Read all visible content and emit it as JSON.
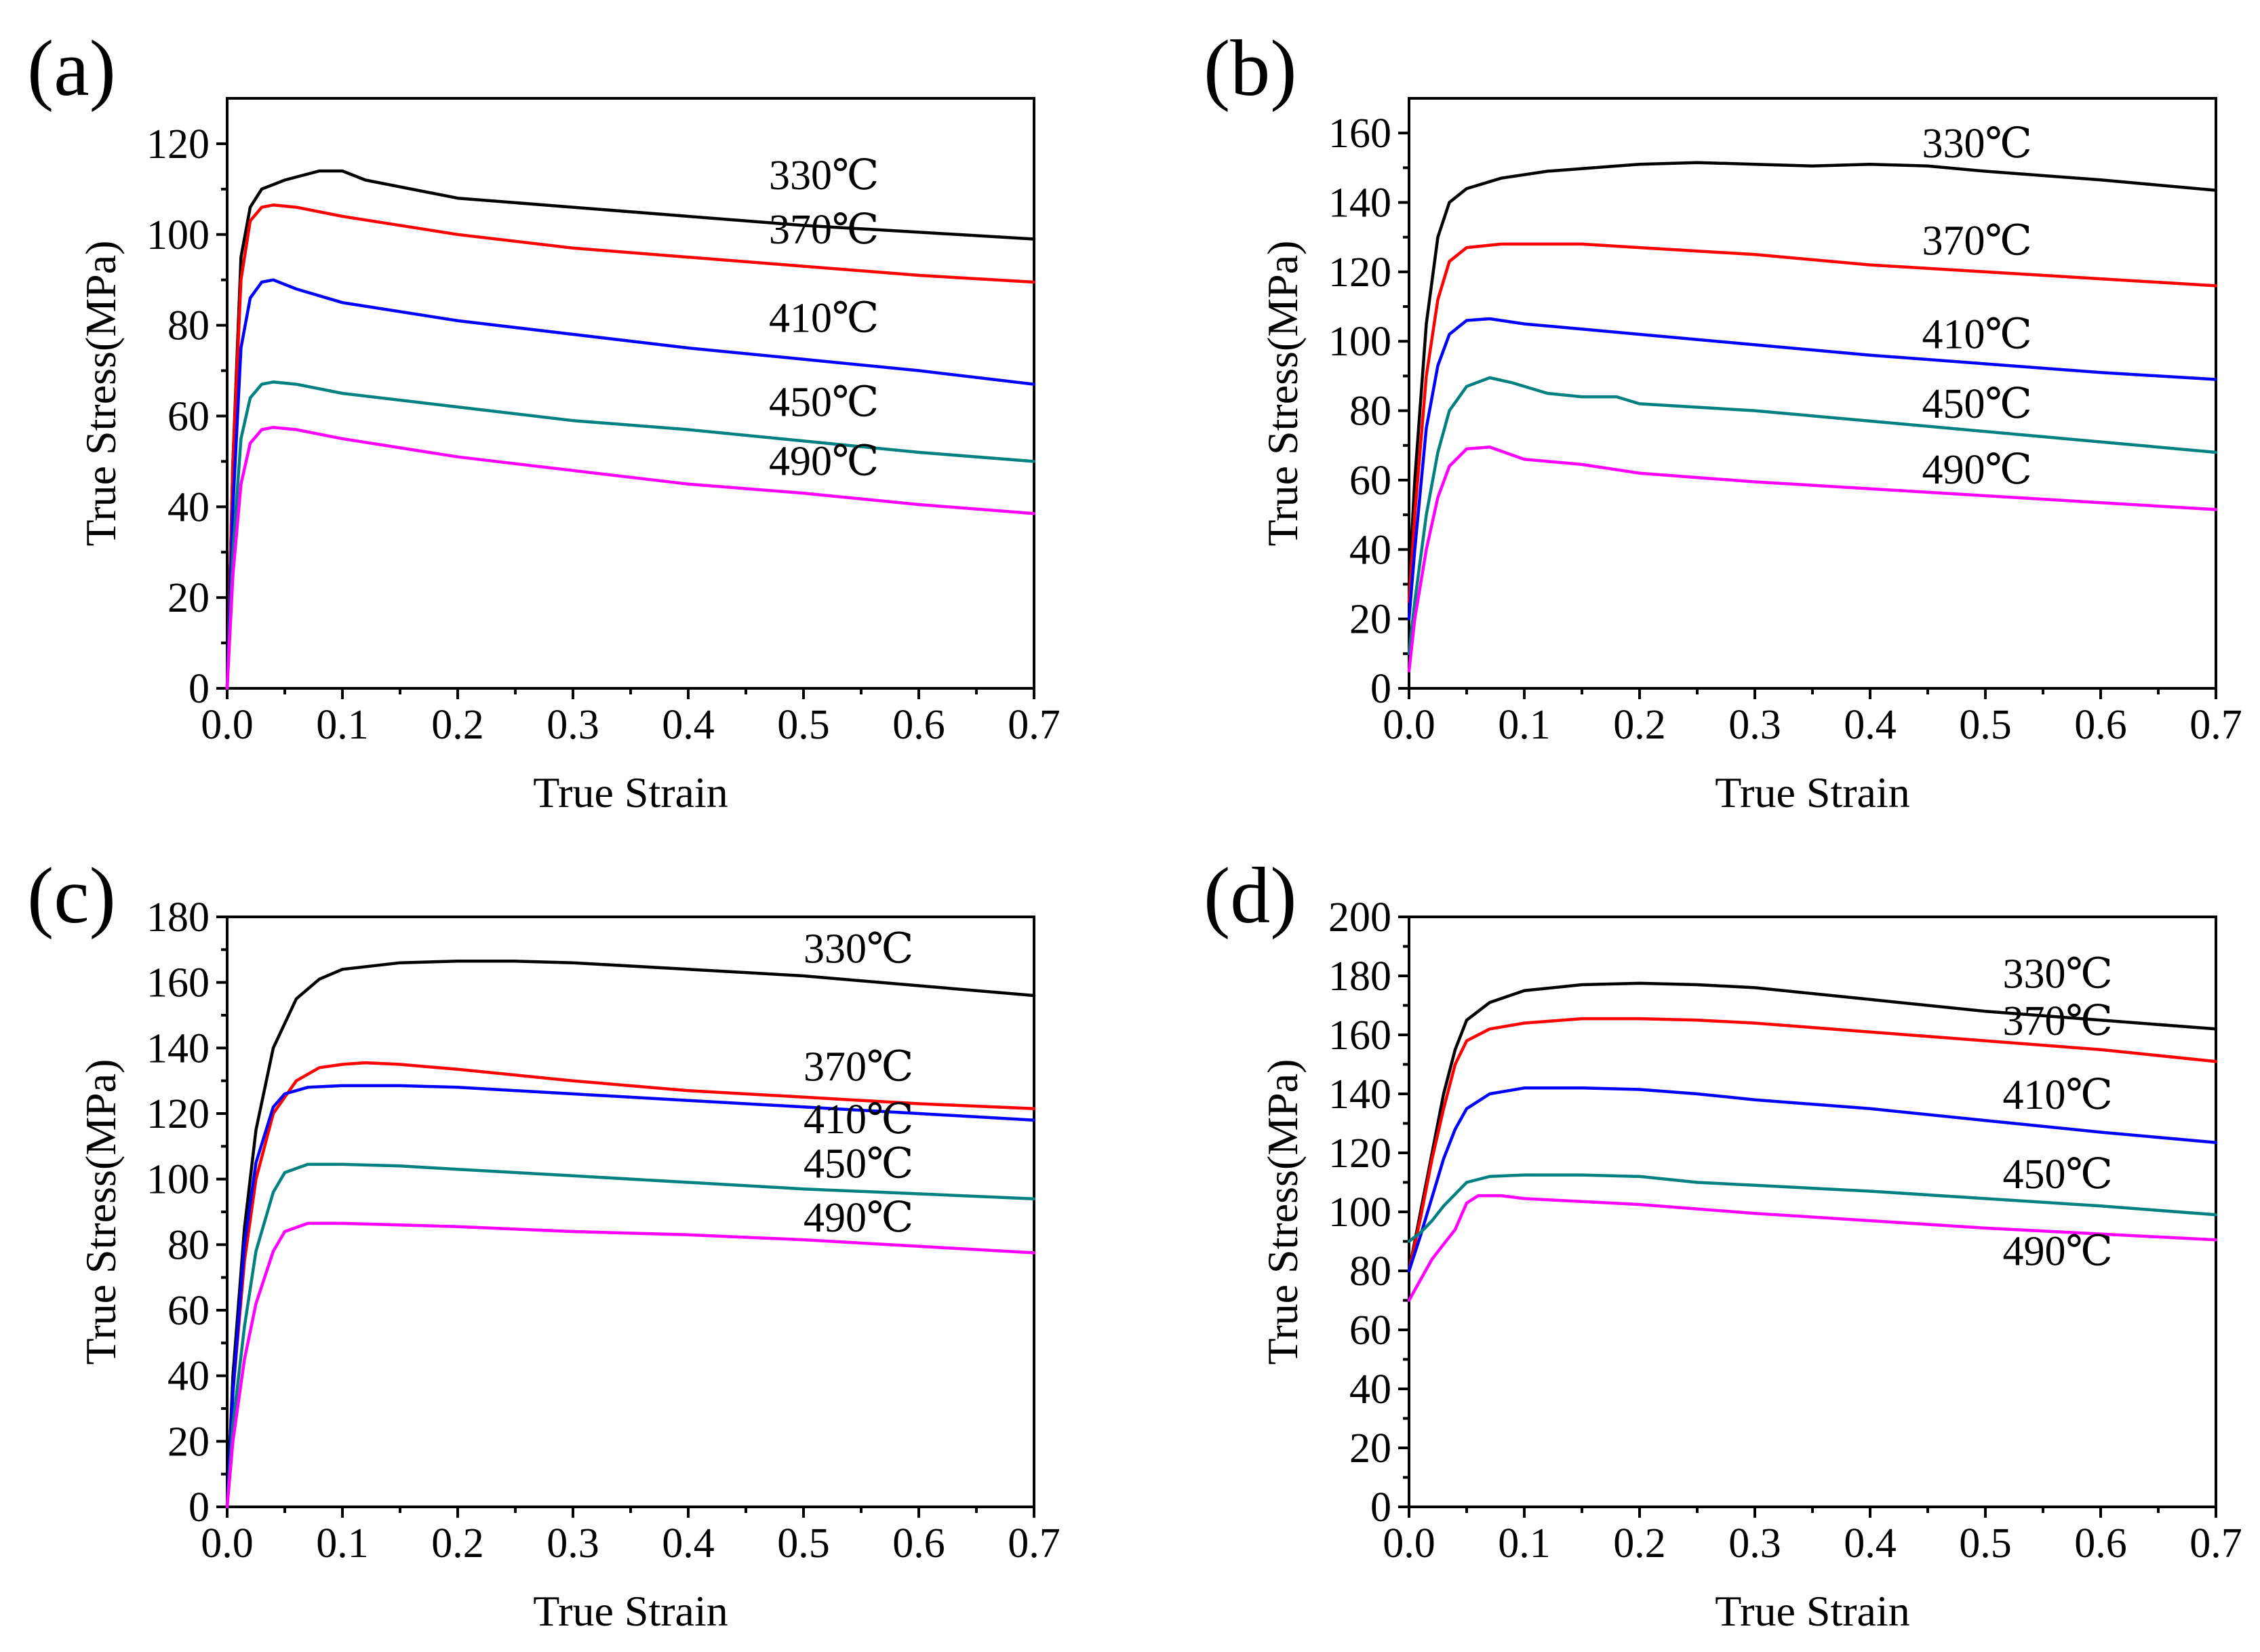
{
  "colors": {
    "330": "#000000",
    "370": "#ff0000",
    "410": "#0000ff",
    "450": "#008080",
    "490": "#ff00ff"
  },
  "chart_data": [
    {
      "panel": "(a)",
      "type": "line",
      "xlabel": "True Strain",
      "ylabel": "True Stress(MPa)",
      "xlim": [
        0,
        0.7
      ],
      "ylim": [
        0,
        130
      ],
      "xticks": [
        "0.0",
        "0.1",
        "0.2",
        "0.3",
        "0.4",
        "0.5",
        "0.6",
        "0.7"
      ],
      "yticks": [
        "0",
        "20",
        "40",
        "60",
        "80",
        "100",
        "120"
      ],
      "series": [
        {
          "name": "330℃",
          "color": "#000000",
          "label_at": [
            0.47,
            110
          ],
          "x": [
            0,
            0.005,
            0.012,
            0.02,
            0.03,
            0.05,
            0.08,
            0.1,
            0.12,
            0.2,
            0.3,
            0.4,
            0.5,
            0.6,
            0.7
          ],
          "y": [
            0,
            50,
            95,
            106,
            110,
            112,
            114,
            114,
            112,
            108,
            106,
            104,
            102,
            100.5,
            99
          ]
        },
        {
          "name": "370℃",
          "color": "#ff0000",
          "label_at": [
            0.47,
            98
          ],
          "x": [
            0,
            0.005,
            0.012,
            0.02,
            0.03,
            0.04,
            0.06,
            0.1,
            0.2,
            0.3,
            0.4,
            0.5,
            0.6,
            0.7
          ],
          "y": [
            0,
            50,
            90,
            103,
            106,
            106.5,
            106,
            104,
            100,
            97,
            95,
            93,
            91,
            89.5
          ]
        },
        {
          "name": "410℃",
          "color": "#0000ff",
          "label_at": [
            0.47,
            78.5
          ],
          "x": [
            0,
            0.005,
            0.012,
            0.02,
            0.03,
            0.04,
            0.06,
            0.1,
            0.2,
            0.3,
            0.4,
            0.5,
            0.6,
            0.7
          ],
          "y": [
            0,
            40,
            75,
            86,
            89.5,
            90,
            88,
            85,
            81,
            78,
            75,
            72.5,
            70,
            67
          ]
        },
        {
          "name": "450℃",
          "color": "#008080",
          "label_at": [
            0.47,
            60
          ],
          "x": [
            0,
            0.005,
            0.012,
            0.02,
            0.03,
            0.04,
            0.06,
            0.1,
            0.2,
            0.3,
            0.4,
            0.5,
            0.6,
            0.7
          ],
          "y": [
            0,
            30,
            55,
            64,
            67,
            67.5,
            67,
            65,
            62,
            59,
            57,
            54.5,
            52,
            50
          ]
        },
        {
          "name": "490℃",
          "color": "#ff00ff",
          "label_at": [
            0.47,
            47
          ],
          "x": [
            0,
            0.005,
            0.012,
            0.02,
            0.03,
            0.04,
            0.06,
            0.1,
            0.2,
            0.3,
            0.4,
            0.5,
            0.6,
            0.7
          ],
          "y": [
            0,
            25,
            45,
            54,
            57,
            57.5,
            57,
            55,
            51,
            48,
            45,
            43,
            40.5,
            38.5
          ]
        }
      ]
    },
    {
      "panel": "(b)",
      "type": "line",
      "xlabel": "True Strain",
      "ylabel": "True Stress(MPa)",
      "xlim": [
        0,
        0.7
      ],
      "ylim": [
        0,
        170
      ],
      "xticks": [
        "0.0",
        "0.1",
        "0.2",
        "0.3",
        "0.4",
        "0.5",
        "0.6",
        "0.7"
      ],
      "yticks": [
        "0",
        "20",
        "40",
        "60",
        "80",
        "100",
        "120",
        "140",
        "160"
      ],
      "series": [
        {
          "name": "330℃",
          "color": "#000000",
          "label_at": [
            0.445,
            153
          ],
          "x": [
            0,
            0.005,
            0.015,
            0.025,
            0.035,
            0.05,
            0.08,
            0.12,
            0.2,
            0.25,
            0.3,
            0.35,
            0.4,
            0.45,
            0.5,
            0.6,
            0.7
          ],
          "y": [
            30,
            60,
            105,
            130,
            140,
            144,
            147,
            149,
            151,
            151.5,
            151,
            150.5,
            151,
            150.5,
            149,
            146.5,
            143.5
          ]
        },
        {
          "name": "370℃",
          "color": "#ff0000",
          "label_at": [
            0.445,
            125
          ],
          "x": [
            0,
            0.005,
            0.015,
            0.025,
            0.035,
            0.05,
            0.08,
            0.15,
            0.2,
            0.3,
            0.4,
            0.5,
            0.6,
            0.7
          ],
          "y": [
            25,
            50,
            90,
            112,
            123,
            127,
            128,
            128,
            127,
            125,
            122,
            120,
            118,
            116
          ]
        },
        {
          "name": "410℃",
          "color": "#0000ff",
          "label_at": [
            0.445,
            98
          ],
          "x": [
            0,
            0.005,
            0.015,
            0.025,
            0.035,
            0.05,
            0.07,
            0.1,
            0.15,
            0.2,
            0.3,
            0.4,
            0.5,
            0.6,
            0.7
          ],
          "y": [
            20,
            40,
            75,
            93,
            102,
            106,
            106.5,
            105,
            103.5,
            102,
            99,
            96,
            93.5,
            91,
            89
          ]
        },
        {
          "name": "450℃",
          "color": "#008080",
          "label_at": [
            0.445,
            78
          ],
          "x": [
            0,
            0.005,
            0.015,
            0.025,
            0.035,
            0.05,
            0.07,
            0.09,
            0.12,
            0.15,
            0.18,
            0.2,
            0.25,
            0.3,
            0.4,
            0.5,
            0.6,
            0.7
          ],
          "y": [
            10,
            25,
            50,
            68,
            80,
            87,
            89.5,
            88,
            85,
            84,
            84,
            82,
            81,
            80,
            77,
            74,
            71,
            68
          ]
        },
        {
          "name": "490℃",
          "color": "#ff00ff",
          "label_at": [
            0.445,
            59
          ],
          "x": [
            0,
            0.005,
            0.015,
            0.025,
            0.035,
            0.05,
            0.07,
            0.1,
            0.15,
            0.2,
            0.3,
            0.4,
            0.5,
            0.6,
            0.7
          ],
          "y": [
            5,
            20,
            40,
            55,
            64,
            69,
            69.5,
            66,
            64.5,
            62,
            59.5,
            57.5,
            55.5,
            53.5,
            51.5
          ]
        }
      ]
    },
    {
      "panel": "(c)",
      "type": "line",
      "xlabel": "True Strain",
      "ylabel": "True Stress(MPa)",
      "xlim": [
        0,
        0.7
      ],
      "ylim": [
        0,
        180
      ],
      "xticks": [
        "0.0",
        "0.1",
        "0.2",
        "0.3",
        "0.4",
        "0.5",
        "0.6",
        "0.7"
      ],
      "yticks": [
        "0",
        "20",
        "40",
        "60",
        "80",
        "100",
        "120",
        "140",
        "160",
        "180"
      ],
      "series": [
        {
          "name": "330℃",
          "color": "#000000",
          "label_at": [
            0.5,
            166
          ],
          "x": [
            0,
            0.005,
            0.015,
            0.025,
            0.04,
            0.06,
            0.08,
            0.1,
            0.15,
            0.2,
            0.25,
            0.3,
            0.4,
            0.5,
            0.6,
            0.7
          ],
          "y": [
            0,
            40,
            85,
            115,
            140,
            155,
            161,
            164,
            166,
            166.5,
            166.5,
            166,
            164,
            162,
            159,
            156
          ]
        },
        {
          "name": "370℃",
          "color": "#ff0000",
          "label_at": [
            0.5,
            130
          ],
          "x": [
            0,
            0.005,
            0.015,
            0.025,
            0.04,
            0.06,
            0.08,
            0.1,
            0.12,
            0.15,
            0.2,
            0.3,
            0.4,
            0.5,
            0.6,
            0.7
          ],
          "y": [
            0,
            35,
            75,
            100,
            120,
            130,
            134,
            135,
            135.5,
            135,
            133.5,
            130,
            127,
            125,
            123,
            121.5
          ]
        },
        {
          "name": "410℃",
          "color": "#0000ff",
          "label_at": [
            0.5,
            114
          ],
          "x": [
            0,
            0.005,
            0.015,
            0.025,
            0.04,
            0.05,
            0.07,
            0.1,
            0.15,
            0.2,
            0.3,
            0.4,
            0.5,
            0.6,
            0.7
          ],
          "y": [
            0,
            35,
            80,
            105,
            122,
            126,
            128,
            128.5,
            128.5,
            128,
            126,
            124,
            122,
            120,
            118
          ]
        },
        {
          "name": "450℃",
          "color": "#008080",
          "label_at": [
            0.5,
            100.5
          ],
          "x": [
            0,
            0.005,
            0.015,
            0.025,
            0.04,
            0.05,
            0.07,
            0.1,
            0.15,
            0.2,
            0.3,
            0.4,
            0.5,
            0.6,
            0.7
          ],
          "y": [
            0,
            25,
            55,
            78,
            96,
            102,
            104.5,
            104.5,
            104,
            103,
            101,
            99,
            97,
            95.5,
            94
          ]
        },
        {
          "name": "490℃",
          "color": "#ff00ff",
          "label_at": [
            0.5,
            84
          ],
          "x": [
            0,
            0.005,
            0.015,
            0.025,
            0.04,
            0.05,
            0.07,
            0.1,
            0.15,
            0.2,
            0.3,
            0.4,
            0.5,
            0.6,
            0.7
          ],
          "y": [
            0,
            20,
            45,
            62,
            78,
            84,
            86.5,
            86.5,
            86,
            85.5,
            84,
            83,
            81.5,
            79.5,
            77.5
          ]
        }
      ]
    },
    {
      "panel": "(d)",
      "type": "line",
      "xlabel": "True Strain",
      "ylabel": "True Stress(MPa)",
      "xlim": [
        0,
        0.7
      ],
      "ylim": [
        0,
        200
      ],
      "xticks": [
        "0.0",
        "0.1",
        "0.2",
        "0.3",
        "0.4",
        "0.5",
        "0.6",
        "0.7"
      ],
      "yticks": [
        "0",
        "20",
        "40",
        "60",
        "80",
        "100",
        "120",
        "140",
        "160",
        "180",
        "200"
      ],
      "series": [
        {
          "name": "330℃",
          "color": "#000000",
          "label_at": [
            0.515,
            176
          ],
          "x": [
            0,
            0.01,
            0.02,
            0.03,
            0.04,
            0.05,
            0.07,
            0.1,
            0.15,
            0.2,
            0.25,
            0.3,
            0.4,
            0.5,
            0.6,
            0.7
          ],
          "y": [
            80,
            100,
            120,
            140,
            155,
            165,
            171,
            175,
            177,
            177.5,
            177,
            176,
            172,
            168,
            165,
            162
          ]
        },
        {
          "name": "370℃",
          "color": "#ff0000",
          "label_at": [
            0.515,
            160
          ],
          "x": [
            0,
            0.01,
            0.02,
            0.03,
            0.04,
            0.05,
            0.07,
            0.1,
            0.15,
            0.2,
            0.25,
            0.3,
            0.4,
            0.5,
            0.6,
            0.7
          ],
          "y": [
            80,
            98,
            118,
            135,
            150,
            158,
            162,
            164,
            165.5,
            165.5,
            165,
            164,
            161,
            158,
            155,
            151
          ]
        },
        {
          "name": "410℃",
          "color": "#0000ff",
          "label_at": [
            0.515,
            135
          ],
          "x": [
            0,
            0.01,
            0.02,
            0.03,
            0.04,
            0.05,
            0.07,
            0.1,
            0.15,
            0.2,
            0.25,
            0.3,
            0.4,
            0.5,
            0.6,
            0.7
          ],
          "y": [
            80,
            92,
            105,
            118,
            128,
            135,
            140,
            142,
            142,
            141.5,
            140,
            138,
            135,
            131,
            127,
            123.5
          ]
        },
        {
          "name": "450℃",
          "color": "#008080",
          "label_at": [
            0.515,
            108
          ],
          "x": [
            0,
            0.01,
            0.02,
            0.03,
            0.04,
            0.05,
            0.07,
            0.1,
            0.15,
            0.2,
            0.25,
            0.3,
            0.4,
            0.5,
            0.6,
            0.7
          ],
          "y": [
            90,
            93,
            97,
            102,
            106,
            110,
            112,
            112.5,
            112.5,
            112,
            110,
            109,
            107,
            104.5,
            102,
            99
          ]
        },
        {
          "name": "490℃",
          "color": "#ff00ff",
          "label_at": [
            0.515,
            82
          ],
          "x": [
            0,
            0.01,
            0.02,
            0.03,
            0.04,
            0.05,
            0.06,
            0.08,
            0.1,
            0.15,
            0.2,
            0.3,
            0.4,
            0.5,
            0.6,
            0.7
          ],
          "y": [
            70,
            77,
            84,
            89,
            94,
            103,
            105.5,
            105.5,
            104.5,
            103.5,
            102.5,
            99.5,
            97,
            94.5,
            92.5,
            90.5
          ]
        }
      ]
    }
  ]
}
